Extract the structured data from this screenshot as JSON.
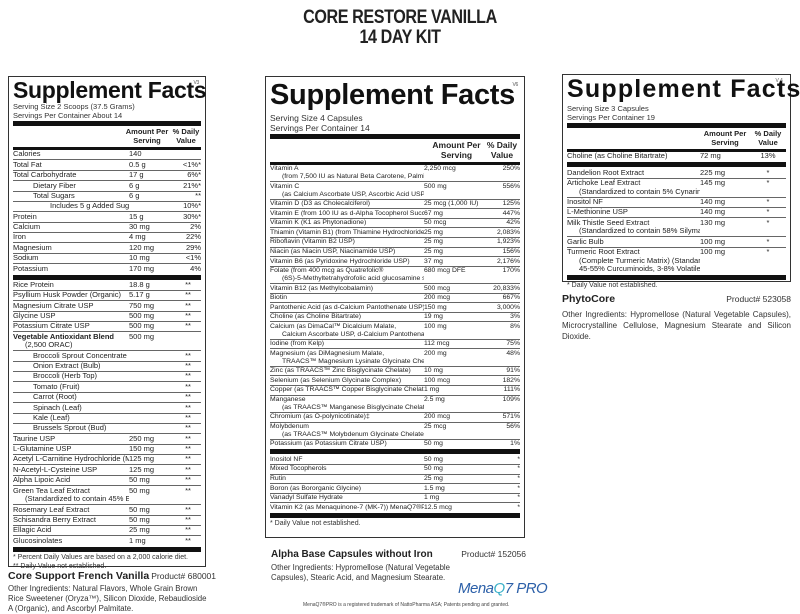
{
  "header": {
    "title_line1": "CORE RESTORE VANILLA",
    "title_line2": "14 DAY KIT"
  },
  "panel_left": {
    "title": "Supplement Facts",
    "version": "V3",
    "serving_size": "Serving Size 2 Scoops (37.5 Grams)",
    "servings_per_container": "Servings Per Container About 14",
    "col_amount": "Amount Per Serving",
    "col_dv": "% Daily Value",
    "nutrients": [
      {
        "name": "Calories",
        "amount": "140",
        "dv": "",
        "indent": 0
      },
      {
        "name": "Total Fat",
        "amount": "0.5 g",
        "dv": "<1%*",
        "indent": 0
      },
      {
        "name": "Total Carbohydrate",
        "amount": "17 g",
        "dv": "6%*",
        "indent": 0
      },
      {
        "name": "Dietary Fiber",
        "amount": "6 g",
        "dv": "21%*",
        "indent": 1
      },
      {
        "name": "Total Sugars",
        "amount": "6 g",
        "dv": "**",
        "indent": 1
      },
      {
        "name": "Includes 5 g Added Sugars",
        "amount": "",
        "dv": "10%*",
        "indent": 2
      },
      {
        "name": "Protein",
        "amount": "15 g",
        "dv": "30%*",
        "indent": 0
      },
      {
        "name": "Calcium",
        "amount": "30 mg",
        "dv": "2%",
        "indent": 0
      },
      {
        "name": "Iron",
        "amount": "4 mg",
        "dv": "22%",
        "indent": 0
      },
      {
        "name": "Magnesium",
        "amount": "120 mg",
        "dv": "29%",
        "indent": 0
      },
      {
        "name": "Sodium",
        "amount": "10 mg",
        "dv": "<1%",
        "indent": 0
      },
      {
        "name": "Potassium",
        "amount": "170 mg",
        "dv": "4%",
        "indent": 0
      }
    ],
    "ingredients": [
      {
        "name": "Rice Protein",
        "amount": "18.8 g",
        "dv": "**"
      },
      {
        "name": "Psyllium Husk Powder (Organic)",
        "amount": "5.17 g",
        "dv": "**"
      },
      {
        "name": "Magnesium Citrate USP",
        "amount": "750 mg",
        "dv": "**"
      },
      {
        "name": "Glycine USP",
        "amount": "500 mg",
        "dv": "**"
      },
      {
        "name": "Potassium Citrate USP",
        "amount": "500 mg",
        "dv": "**"
      },
      {
        "name": "Vegetable Antioxidant Blend",
        "sub": "(2,500 ORAC)",
        "amount": "500 mg",
        "dv": "",
        "bold": true
      },
      {
        "name": "Broccoli Sprout Concentrate",
        "amount": "",
        "dv": "**",
        "indent": 1
      },
      {
        "name": "Onion Extract (Bulb)",
        "amount": "",
        "dv": "**",
        "indent": 1
      },
      {
        "name": "Broccoli (Herb Top)",
        "amount": "",
        "dv": "**",
        "indent": 1
      },
      {
        "name": "Tomato (Fruit)",
        "amount": "",
        "dv": "**",
        "indent": 1
      },
      {
        "name": "Carrot (Root)",
        "amount": "",
        "dv": "**",
        "indent": 1
      },
      {
        "name": "Spinach (Leaf)",
        "amount": "",
        "dv": "**",
        "indent": 1
      },
      {
        "name": "Kale (Leaf)",
        "amount": "",
        "dv": "**",
        "indent": 1
      },
      {
        "name": "Brussels Sprout (Bud)",
        "amount": "",
        "dv": "**",
        "indent": 1
      },
      {
        "name": "Taurine USP",
        "amount": "250 mg",
        "dv": "**"
      },
      {
        "name": "L-Glutamine USP",
        "amount": "150 mg",
        "dv": "**"
      },
      {
        "name": "Acetyl L-Carnitine Hydrochloride (MitoCarn™)",
        "amount": "125 mg",
        "dv": "**"
      },
      {
        "name": "N-Acetyl-L-Cysteine USP",
        "amount": "125 mg",
        "dv": "**"
      },
      {
        "name": "Alpha Lipoic Acid",
        "amount": "50 mg",
        "dv": "**"
      },
      {
        "name": "Green Tea Leaf Extract",
        "sub": "(Standardized to contain 45% EGCg (Epigallocatechin gallate))",
        "amount": "50 mg",
        "dv": "**"
      },
      {
        "name": "Rosemary Leaf Extract",
        "amount": "50 mg",
        "dv": "**"
      },
      {
        "name": "Schisandra Berry Extract",
        "amount": "50 mg",
        "dv": "**"
      },
      {
        "name": "Ellagic Acid",
        "amount": "25 mg",
        "dv": "**"
      },
      {
        "name": "Glucosinolates",
        "amount": "1 mg",
        "dv": "**"
      }
    ],
    "footnote1": "* Percent Daily Values are based on a 2,000 calorie diet.",
    "footnote2": "** Daily Value not established.",
    "product_name": "Core Support French Vanilla",
    "product_number": "Product# 680001",
    "other_ingredients": "Other Ingredients: Natural Flavors, Whole Grain Brown Rice Sweetener (Oryza™), Silicon Dioxide, Rebaudioside A (Organic), and Ascorbyl Palmitate."
  },
  "panel_middle": {
    "title": "Supplement Facts",
    "version": "V6",
    "serving_size": "Serving Size 4 Capsules",
    "servings_per_container": "Servings Per Container 14",
    "col_amount": "Amount Per Serving",
    "col_dv": "% Daily Value",
    "nutrients": [
      {
        "name": "Vitamin A",
        "sub": "(from 7,500 IU as Natural Beta Carotene, Palmitate)",
        "amount": "2,250 mcg",
        "dv": "250%"
      },
      {
        "name": "Vitamin C",
        "sub": "(as Calcium Ascorbate USP, Ascorbic Acid USP)",
        "amount": "500 mg",
        "dv": "556%"
      },
      {
        "name": "Vitamin D (D3 as Cholecalciferol)",
        "amount": "25 mcg (1,000 IU)",
        "dv": "125%"
      },
      {
        "name": "Vitamin E (from 100 IU as d-Alpha Tocopherol Succinate USP)",
        "amount": "67 mg",
        "dv": "447%"
      },
      {
        "name": "Vitamin K (K1 as Phytonadione)",
        "amount": "50 mcg",
        "dv": "42%"
      },
      {
        "name": "Thiamin (Vitamin B1) (from Thiamine Hydrochloride USP)",
        "amount": "25 mg",
        "dv": "2,083%"
      },
      {
        "name": "Riboflavin (Vitamin B2 USP)",
        "amount": "25 mg",
        "dv": "1,923%"
      },
      {
        "name": "Niacin (as Niacin USP, Niacinamide USP)",
        "amount": "25 mg",
        "dv": "156%"
      },
      {
        "name": "Vitamin B6 (as Pyridoxine Hydrochloride USP)",
        "amount": "37 mg",
        "dv": "2,176%"
      },
      {
        "name": "Folate (from 400 mcg as Quatrefolic®",
        "sub": "(6S)-5-Methyltetrahydrofolic acid glucosamine salt)",
        "amount": "680 mcg DFE",
        "dv": "170%"
      },
      {
        "name": "Vitamin B12 (as Methylcobalamin)",
        "amount": "500 mcg",
        "dv": "20,833%"
      },
      {
        "name": "Biotin",
        "amount": "200 mcg",
        "dv": "667%"
      },
      {
        "name": "Pantothenic Acid (as d-Calcium Pantothenate USP)",
        "amount": "150 mg",
        "dv": "3,000%"
      },
      {
        "name": "Choline (as Choline Bitartrate)",
        "amount": "19 mg",
        "dv": "3%"
      },
      {
        "name": "Calcium (as DimaCal™ Dicalcium Malate,",
        "sub": "Calcium Ascorbate USP, d-Calcium Pantothenate USP)",
        "amount": "100 mg",
        "dv": "8%"
      },
      {
        "name": "Iodine (from Kelp)",
        "amount": "112 mcg",
        "dv": "75%"
      },
      {
        "name": "Magnesium (as DiMagnesium Malate,",
        "sub": "TRAACS™ Magnesium Lysinate Glycinate Chelate)",
        "amount": "200 mg",
        "dv": "48%"
      },
      {
        "name": "Zinc (as TRAACS™ Zinc Bisglycinate Chelate)",
        "amount": "10 mg",
        "dv": "91%"
      },
      {
        "name": "Selenium (as Selenium Glycinate Complex)",
        "amount": "100 mcg",
        "dv": "182%"
      },
      {
        "name": "Copper (as TRAACS™ Copper Bisglycinate Chelate)",
        "amount": "1 mg",
        "dv": "111%"
      },
      {
        "name": "Manganese",
        "sub": "(as TRAACS™ Manganese Bisglycinate Chelate)",
        "amount": "2.5 mg",
        "dv": "109%"
      },
      {
        "name": "Chromium (as O-polynicotinate)‡",
        "amount": "200 mcg",
        "dv": "571%"
      },
      {
        "name": "Molybdenum",
        "sub": "(as TRAACS™ Molybdenum Glycinate Chelate)",
        "amount": "25 mcg",
        "dv": "56%"
      },
      {
        "name": "Potassium (as Potassium Citrate USP)",
        "amount": "50 mg",
        "dv": "1%"
      }
    ],
    "ingredients": [
      {
        "name": "Inositol NF",
        "amount": "50 mg",
        "dv": "*"
      },
      {
        "name": "Mixed Tocopherols",
        "amount": "50 mg",
        "dv": "*"
      },
      {
        "name": "Rutin",
        "amount": "25 mg",
        "dv": "*"
      },
      {
        "name": "Boron (as Bororganic Glycine)",
        "amount": "1.5 mg",
        "dv": "*"
      },
      {
        "name": "Vanadyl Sulfate Hydrate",
        "amount": "1 mg",
        "dv": "*"
      },
      {
        "name": "Vitamin K2 (as Menaquinone-7 (MK-7)) MenaQ7®PRO",
        "amount": "12.5 mcg",
        "dv": "*"
      }
    ],
    "footnote1": "* Daily Value not established.",
    "product_name": "Alpha Base Capsules without Iron",
    "product_number": "Product# 152056",
    "other_ingredients": "Other Ingredients: Hypromellose (Natural Vegetable Capsules), Stearic Acid, and Magnesium Stearate.",
    "logo_left": "Mena",
    "logo_q": "Q",
    "logo_right": "7 PRO",
    "trademark_note": "MenaQ7®PRO is a registered trademark of NattoPharma ASA; Patents pending and granted."
  },
  "panel_right": {
    "title": "Supplement Facts",
    "version": "V4",
    "serving_size": "Serving Size 3 Capsules",
    "servings_per_container": "Servings Per Container  19",
    "col_amount": "Amount Per Serving",
    "col_dv": "% Daily Value",
    "nutrients": [
      {
        "name": "Choline (as Choline Bitartrate)",
        "amount": "72 mg",
        "dv": "13%"
      }
    ],
    "ingredients": [
      {
        "name": "Dandelion Root Extract",
        "amount": "225 mg",
        "dv": "*"
      },
      {
        "name": "Artichoke Leaf Extract",
        "sub": "(Standardized to contain 5% Cynarin)",
        "amount": "145 mg",
        "dv": "*"
      },
      {
        "name": "Inositol NF",
        "amount": "140 mg",
        "dv": "*"
      },
      {
        "name": "L-Methionine USP",
        "amount": "140 mg",
        "dv": "*"
      },
      {
        "name": "Milk Thistle Seed Extract",
        "sub": "(Standardized to contain 58% Silymarin)",
        "amount": "130 mg",
        "dv": "*"
      },
      {
        "name": "Garlic Bulb",
        "amount": "100 mg",
        "dv": "*"
      },
      {
        "name": "Turmeric Root Extract",
        "sub": "(Complete Turmeric Matrix) (Standardized to contain",
        "sub2": "45-55% Curcuminoids, 3-8% Volatile Oil, 2-6% Turmerin)",
        "amount": "100 mg",
        "dv": "*"
      }
    ],
    "footnote1": "* Daily Value not established.",
    "product_name": "PhytoCore",
    "product_number": "Product# 523058",
    "other_ingredients": "Other Ingredients: Hypromellose (Natural Vegetable Capsules), Microcrystalline Cellulose, Magnesium Stearate and Silicon Dioxide."
  }
}
